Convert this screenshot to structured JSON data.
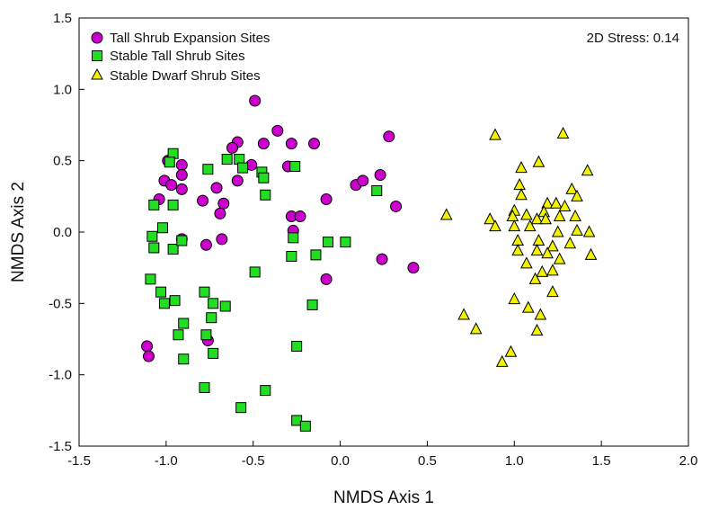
{
  "chart_data": {
    "type": "scatter",
    "xlabel": "NMDS Axis 1",
    "ylabel": "NMDS Axis 2",
    "xlim": [
      -1.5,
      2.0
    ],
    "ylim": [
      -1.5,
      1.5
    ],
    "xticks": [
      -1.5,
      -1.0,
      -0.5,
      0.0,
      0.5,
      1.0,
      1.5,
      2.0
    ],
    "yticks": [
      -1.5,
      -1.0,
      -0.5,
      0.0,
      0.5,
      1.0,
      1.5
    ],
    "xtick_labels": [
      "-1.5",
      "-1.0",
      "-0.5",
      "0.0",
      "0.5",
      "1.0",
      "1.5",
      "2.0"
    ],
    "ytick_labels": [
      "-1.5",
      "-1.0",
      "-0.5",
      "0.0",
      "0.5",
      "1.0",
      "1.5"
    ],
    "grid": false,
    "legend_position": "top-left",
    "annotation": "2D Stress: 0.14",
    "series": [
      {
        "name": "Tall Shrub Expansion Sites",
        "marker": "circle",
        "color": "#cc00cc",
        "points": [
          [
            -0.49,
            0.92
          ],
          [
            -0.36,
            0.71
          ],
          [
            0.28,
            0.67
          ],
          [
            -0.59,
            0.63
          ],
          [
            -0.44,
            0.62
          ],
          [
            -0.28,
            0.62
          ],
          [
            -0.15,
            0.62
          ],
          [
            -0.62,
            0.59
          ],
          [
            -0.51,
            0.47
          ],
          [
            -0.3,
            0.46
          ],
          [
            -0.91,
            0.47
          ],
          [
            -0.99,
            0.5
          ],
          [
            -0.91,
            0.4
          ],
          [
            -1.01,
            0.36
          ],
          [
            -0.97,
            0.33
          ],
          [
            -0.91,
            0.3
          ],
          [
            -0.71,
            0.31
          ],
          [
            -0.59,
            0.36
          ],
          [
            -1.04,
            0.23
          ],
          [
            -0.79,
            0.22
          ],
          [
            -0.67,
            0.2
          ],
          [
            -0.69,
            0.13
          ],
          [
            -0.08,
            0.23
          ],
          [
            0.09,
            0.33
          ],
          [
            0.13,
            0.36
          ],
          [
            0.23,
            0.4
          ],
          [
            0.32,
            0.18
          ],
          [
            -0.28,
            0.11
          ],
          [
            -0.23,
            0.11
          ],
          [
            -0.27,
            0.01
          ],
          [
            -0.91,
            -0.05
          ],
          [
            -0.77,
            -0.09
          ],
          [
            -0.68,
            -0.05
          ],
          [
            0.24,
            -0.19
          ],
          [
            0.42,
            -0.25
          ],
          [
            -0.08,
            -0.33
          ],
          [
            -0.76,
            -0.76
          ],
          [
            -1.11,
            -0.8
          ],
          [
            -1.1,
            -0.87
          ]
        ]
      },
      {
        "name": "Stable Tall Shrub Sites",
        "marker": "square",
        "color": "#22dd22",
        "points": [
          [
            -0.96,
            0.55
          ],
          [
            -0.98,
            0.49
          ],
          [
            -0.76,
            0.44
          ],
          [
            -0.65,
            0.51
          ],
          [
            -0.58,
            0.51
          ],
          [
            -0.56,
            0.45
          ],
          [
            -0.45,
            0.42
          ],
          [
            -0.44,
            0.38
          ],
          [
            -0.26,
            0.46
          ],
          [
            -1.07,
            0.19
          ],
          [
            -0.96,
            0.19
          ],
          [
            -0.43,
            0.26
          ],
          [
            0.21,
            0.29
          ],
          [
            -1.02,
            0.03
          ],
          [
            -1.08,
            -0.03
          ],
          [
            -1.07,
            -0.11
          ],
          [
            -0.96,
            -0.12
          ],
          [
            -0.91,
            -0.06
          ],
          [
            -0.27,
            -0.04
          ],
          [
            -0.28,
            -0.17
          ],
          [
            -0.14,
            -0.16
          ],
          [
            -0.07,
            -0.07
          ],
          [
            0.03,
            -0.07
          ],
          [
            -0.49,
            -0.28
          ],
          [
            -1.09,
            -0.33
          ],
          [
            -1.03,
            -0.42
          ],
          [
            -1.01,
            -0.5
          ],
          [
            -0.95,
            -0.48
          ],
          [
            -0.78,
            -0.42
          ],
          [
            -0.73,
            -0.5
          ],
          [
            -0.66,
            -0.52
          ],
          [
            -0.74,
            -0.6
          ],
          [
            -0.16,
            -0.51
          ],
          [
            -0.9,
            -0.64
          ],
          [
            -0.93,
            -0.72
          ],
          [
            -0.77,
            -0.72
          ],
          [
            -0.73,
            -0.85
          ],
          [
            -0.9,
            -0.89
          ],
          [
            -0.25,
            -0.8
          ],
          [
            -0.78,
            -1.09
          ],
          [
            -0.57,
            -1.23
          ],
          [
            -0.43,
            -1.11
          ],
          [
            -0.25,
            -1.32
          ],
          [
            -0.2,
            -1.36
          ]
        ]
      },
      {
        "name": "Stable Dwarf Shrub Sites",
        "marker": "triangle",
        "color": "#f2f200",
        "points": [
          [
            0.89,
            0.68
          ],
          [
            1.28,
            0.69
          ],
          [
            1.04,
            0.45
          ],
          [
            1.14,
            0.49
          ],
          [
            1.42,
            0.43
          ],
          [
            1.03,
            0.33
          ],
          [
            1.33,
            0.3
          ],
          [
            1.04,
            0.26
          ],
          [
            1.36,
            0.25
          ],
          [
            1.19,
            0.2
          ],
          [
            1.24,
            0.2
          ],
          [
            1.29,
            0.18
          ],
          [
            1.17,
            0.14
          ],
          [
            1.0,
            0.15
          ],
          [
            0.99,
            0.11
          ],
          [
            1.07,
            0.12
          ],
          [
            1.13,
            0.09
          ],
          [
            1.18,
            0.09
          ],
          [
            1.26,
            0.11
          ],
          [
            1.35,
            0.11
          ],
          [
            0.86,
            0.09
          ],
          [
            0.61,
            0.12
          ],
          [
            0.89,
            0.04
          ],
          [
            1.0,
            0.04
          ],
          [
            1.09,
            0.04
          ],
          [
            1.25,
            0.0
          ],
          [
            1.36,
            0.01
          ],
          [
            1.43,
            0.0
          ],
          [
            1.02,
            -0.06
          ],
          [
            1.14,
            -0.06
          ],
          [
            1.22,
            -0.1
          ],
          [
            1.32,
            -0.08
          ],
          [
            1.02,
            -0.13
          ],
          [
            1.13,
            -0.13
          ],
          [
            1.19,
            -0.15
          ],
          [
            1.26,
            -0.19
          ],
          [
            1.44,
            -0.16
          ],
          [
            1.07,
            -0.22
          ],
          [
            1.16,
            -0.28
          ],
          [
            1.22,
            -0.27
          ],
          [
            1.12,
            -0.33
          ],
          [
            1.22,
            -0.42
          ],
          [
            1.0,
            -0.47
          ],
          [
            1.08,
            -0.53
          ],
          [
            1.15,
            -0.58
          ],
          [
            0.71,
            -0.58
          ],
          [
            0.78,
            -0.68
          ],
          [
            1.13,
            -0.69
          ],
          [
            0.98,
            -0.84
          ],
          [
            0.93,
            -0.91
          ]
        ]
      }
    ]
  }
}
